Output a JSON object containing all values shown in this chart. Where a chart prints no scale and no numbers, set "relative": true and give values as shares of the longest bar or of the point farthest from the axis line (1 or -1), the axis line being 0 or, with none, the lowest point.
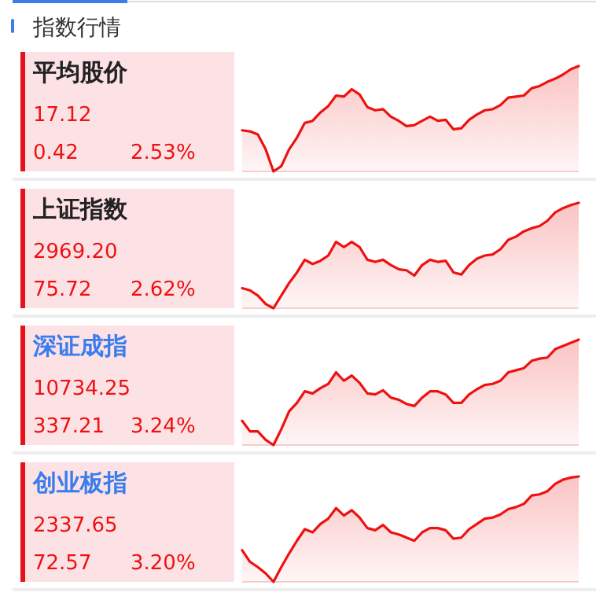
{
  "chart_data": [
    {
      "type": "other",
      "title": "指数行情"
    },
    {
      "type": "area",
      "title": "平均股价",
      "relative": true,
      "annotations": [
        "17.12",
        "0.42",
        "2.53%"
      ],
      "categories": [
        null,
        null,
        null,
        null,
        null,
        null,
        null,
        null,
        null,
        null,
        null,
        null,
        null,
        null,
        null,
        null,
        null,
        null,
        null,
        null,
        null,
        null,
        null,
        null,
        null,
        null,
        null,
        null,
        null,
        null,
        null,
        null,
        null,
        null,
        null,
        null,
        null,
        null,
        null,
        null,
        null,
        null,
        null,
        null
      ],
      "series": [
        {
          "color": "#ee1111",
          "values": [
            0.39,
            0.38,
            0.35,
            0.21,
            0.0,
            0.05,
            0.21,
            0.32,
            0.46,
            0.48,
            0.56,
            0.62,
            0.72,
            0.71,
            0.78,
            0.73,
            0.61,
            0.58,
            0.59,
            0.52,
            0.48,
            0.43,
            0.44,
            0.48,
            0.52,
            0.48,
            0.49,
            0.4,
            0.41,
            0.49,
            0.54,
            0.58,
            0.59,
            0.63,
            0.7,
            0.71,
            0.72,
            0.79,
            0.81,
            0.85,
            0.88,
            0.92,
            0.97,
            1.0
          ]
        }
      ]
    },
    {
      "type": "area",
      "title": "上证指数",
      "relative": true,
      "annotations": [
        "2969.20",
        "75.72",
        "2.62%"
      ],
      "categories": [
        null,
        null,
        null,
        null,
        null,
        null,
        null,
        null,
        null,
        null,
        null,
        null,
        null,
        null,
        null,
        null,
        null,
        null,
        null,
        null,
        null,
        null,
        null,
        null,
        null,
        null,
        null,
        null,
        null,
        null,
        null,
        null,
        null,
        null,
        null,
        null,
        null,
        null,
        null,
        null,
        null,
        null,
        null,
        null
      ],
      "series": [
        {
          "color": "#ee1111",
          "values": [
            0.19,
            0.17,
            0.12,
            0.04,
            0.0,
            0.12,
            0.24,
            0.34,
            0.46,
            0.42,
            0.45,
            0.5,
            0.63,
            0.58,
            0.63,
            0.58,
            0.46,
            0.44,
            0.46,
            0.41,
            0.37,
            0.36,
            0.31,
            0.41,
            0.46,
            0.44,
            0.45,
            0.34,
            0.32,
            0.41,
            0.47,
            0.5,
            0.51,
            0.56,
            0.65,
            0.68,
            0.73,
            0.76,
            0.78,
            0.83,
            0.91,
            0.95,
            0.98,
            1.0
          ]
        }
      ]
    },
    {
      "type": "area",
      "title": "深证成指",
      "relative": true,
      "annotations": [
        "10734.25",
        "337.21",
        "3.24%"
      ],
      "categories": [
        null,
        null,
        null,
        null,
        null,
        null,
        null,
        null,
        null,
        null,
        null,
        null,
        null,
        null,
        null,
        null,
        null,
        null,
        null,
        null,
        null,
        null,
        null,
        null,
        null,
        null,
        null,
        null,
        null,
        null,
        null,
        null,
        null,
        null,
        null,
        null,
        null,
        null,
        null,
        null,
        null,
        null,
        null,
        null
      ],
      "series": [
        {
          "color": "#ee1111",
          "values": [
            0.23,
            0.13,
            0.13,
            0.05,
            0.0,
            0.15,
            0.32,
            0.4,
            0.51,
            0.49,
            0.54,
            0.58,
            0.69,
            0.61,
            0.66,
            0.59,
            0.49,
            0.48,
            0.52,
            0.45,
            0.43,
            0.39,
            0.37,
            0.45,
            0.51,
            0.51,
            0.48,
            0.4,
            0.4,
            0.48,
            0.53,
            0.57,
            0.58,
            0.61,
            0.69,
            0.71,
            0.73,
            0.8,
            0.82,
            0.83,
            0.91,
            0.94,
            0.97,
            1.0
          ]
        }
      ]
    },
    {
      "type": "area",
      "title": "创业板指",
      "relative": true,
      "annotations": [
        "2337.65",
        "72.57",
        "3.20%"
      ],
      "categories": [
        null,
        null,
        null,
        null,
        null,
        null,
        null,
        null,
        null,
        null,
        null,
        null,
        null,
        null,
        null,
        null,
        null,
        null,
        null,
        null,
        null,
        null,
        null,
        null,
        null,
        null,
        null,
        null,
        null,
        null,
        null,
        null,
        null,
        null,
        null,
        null,
        null,
        null,
        null,
        null,
        null,
        null,
        null,
        null
      ],
      "series": [
        {
          "color": "#ee1111",
          "values": [
            0.3,
            0.19,
            0.14,
            0.08,
            0.0,
            0.14,
            0.27,
            0.39,
            0.5,
            0.47,
            0.55,
            0.6,
            0.7,
            0.63,
            0.68,
            0.61,
            0.51,
            0.49,
            0.54,
            0.47,
            0.45,
            0.42,
            0.39,
            0.47,
            0.51,
            0.51,
            0.49,
            0.41,
            0.42,
            0.5,
            0.55,
            0.6,
            0.61,
            0.64,
            0.69,
            0.71,
            0.74,
            0.82,
            0.83,
            0.86,
            0.93,
            0.97,
            0.99,
            1.0
          ]
        }
      ]
    }
  ]
}
